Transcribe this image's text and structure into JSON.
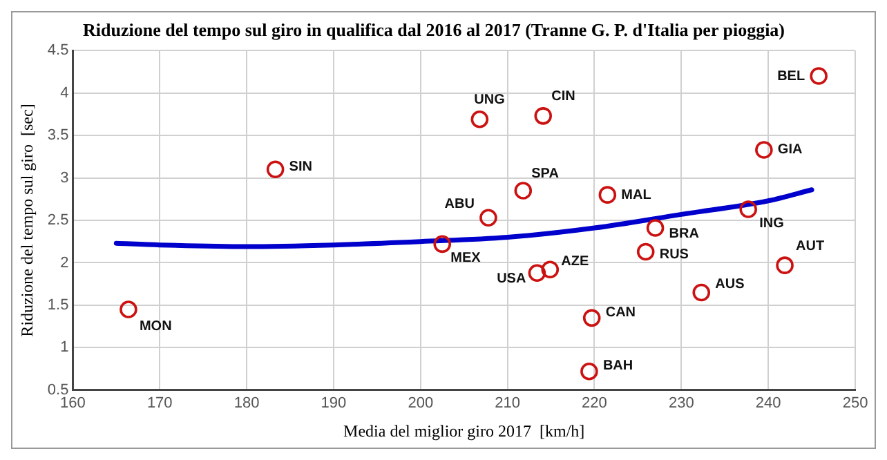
{
  "chart_data": {
    "type": "scatter",
    "title": "Riduzione del tempo sul giro in qualifica dal 2016 al 2017 (Tranne G. P. d'Italia per pioggia)",
    "xlabel": "Media del miglior giro 2017  [km/h]",
    "ylabel": "Riduzione del tempo sul giro  [sec]",
    "xlim": [
      160,
      250
    ],
    "xticks": [
      160,
      170,
      180,
      190,
      200,
      210,
      220,
      230,
      240,
      250
    ],
    "ylim": [
      0.5,
      4.5
    ],
    "yticks": [
      0.5,
      1,
      1.5,
      2,
      2.5,
      3,
      3.5,
      4,
      4.5
    ],
    "grid": true,
    "legend": false,
    "marker": "circle",
    "series": [
      {
        "color": "#cc1111",
        "x": [
          245.8,
          206.8,
          214.1,
          239.5,
          211.8,
          221.5,
          207.8,
          237.7,
          227.0,
          225.9,
          241.9,
          213.4,
          214.9,
          232.3,
          219.7,
          219.4,
          183.3,
          166.4,
          202.5
        ],
        "values": [
          4.2,
          3.69,
          3.73,
          3.33,
          2.85,
          2.8,
          2.53,
          2.63,
          2.41,
          2.13,
          1.97,
          1.88,
          1.92,
          1.65,
          1.35,
          0.72,
          3.1,
          1.45,
          2.22
        ]
      },
      {
        "type": "line",
        "color": "#0000cc",
        "marker": "none",
        "x": [
          165,
          170,
          180,
          190,
          200,
          210,
          220,
          230,
          240,
          245
        ],
        "values": [
          2.23,
          2.21,
          2.19,
          2.21,
          2.25,
          2.3,
          2.41,
          2.57,
          2.73,
          2.86
        ]
      }
    ],
    "annotations": [
      {
        "text": "BEL",
        "x": 245.8,
        "y": 4.2
      },
      {
        "text": "UNG",
        "x": 206.8,
        "y": 3.69
      },
      {
        "text": "CIN",
        "x": 214.1,
        "y": 3.73
      },
      {
        "text": "GIA",
        "x": 239.5,
        "y": 3.33
      },
      {
        "text": "SPA",
        "x": 211.8,
        "y": 2.85
      },
      {
        "text": "MAL",
        "x": 221.5,
        "y": 2.8
      },
      {
        "text": "ABU",
        "x": 207.8,
        "y": 2.53
      },
      {
        "text": "ING",
        "x": 237.7,
        "y": 2.63
      },
      {
        "text": "BRA",
        "x": 227.0,
        "y": 2.41
      },
      {
        "text": "RUS",
        "x": 225.9,
        "y": 2.13
      },
      {
        "text": "AUT",
        "x": 241.9,
        "y": 1.97
      },
      {
        "text": "USA",
        "x": 213.4,
        "y": 1.88
      },
      {
        "text": "AZE",
        "x": 214.9,
        "y": 1.92
      },
      {
        "text": "AUS",
        "x": 232.3,
        "y": 1.65
      },
      {
        "text": "CAN",
        "x": 219.7,
        "y": 1.35
      },
      {
        "text": "BAH",
        "x": 219.4,
        "y": 0.72
      },
      {
        "text": "SIN",
        "x": 183.3,
        "y": 3.1
      },
      {
        "text": "MON",
        "x": 166.4,
        "y": 1.45
      },
      {
        "text": "MEX",
        "x": 202.5,
        "y": 2.22
      }
    ]
  }
}
